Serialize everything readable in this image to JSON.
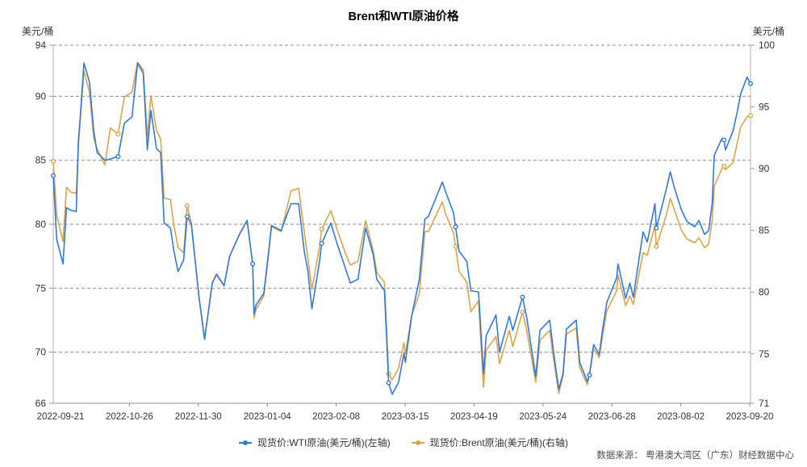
{
  "title": "Brent和WTI原油价格",
  "source": "数据来源： 粤港澳大湾区（广东）财经数据中心",
  "legend": [
    {
      "label": "现货价:WTI原油(美元/桶)(左轴)",
      "color": "#3379d6"
    },
    {
      "label": "现货价:Brent原油(美元/桶)(右轴)",
      "color": "#d9a44c"
    }
  ],
  "chart_data": {
    "type": "line",
    "title": "Brent和WTI原油价格",
    "grid": "horizontal dashed, aligned to left axis ticks",
    "legend_position": "bottom-center",
    "y_left": {
      "label": "美元/桶",
      "min": 66,
      "max": 94,
      "ticks": [
        94,
        90,
        85,
        80,
        75,
        70,
        66
      ]
    },
    "y_right": {
      "label": "美元/桶",
      "min": 71,
      "max": 100,
      "ticks": [
        100,
        95,
        90,
        85,
        80,
        75,
        71
      ]
    },
    "x_tick_labels": [
      "2022-09-21",
      "2022-10-26",
      "2022-11-30",
      "2023-01-04",
      "2023-02-08",
      "2023-03-15",
      "2023-04-19",
      "2023-05-24",
      "2023-06-28",
      "2023-08-02",
      "2023-09-20"
    ],
    "x_range": [
      "2022-09-21",
      "2023-09-20"
    ],
    "series": [
      {
        "name": "现货价:WTI原油(美元/桶)(左轴)",
        "axis": "left",
        "color": "#3379d6",
        "points": [
          [
            0.0,
            83.8,
            1
          ],
          [
            0.005,
            78.8
          ],
          [
            0.014,
            76.9
          ],
          [
            0.019,
            81.3
          ],
          [
            0.025,
            81.1
          ],
          [
            0.033,
            81.0
          ],
          [
            0.036,
            86.5
          ],
          [
            0.038,
            87.8
          ],
          [
            0.044,
            92.6
          ],
          [
            0.052,
            91.1
          ],
          [
            0.058,
            87.3
          ],
          [
            0.063,
            85.6
          ],
          [
            0.074,
            85.0
          ],
          [
            0.082,
            85.1
          ],
          [
            0.093,
            85.3,
            1
          ],
          [
            0.102,
            87.9
          ],
          [
            0.113,
            88.4
          ],
          [
            0.121,
            92.6
          ],
          [
            0.129,
            91.8
          ],
          [
            0.135,
            85.8
          ],
          [
            0.14,
            88.9
          ],
          [
            0.148,
            85.9
          ],
          [
            0.154,
            85.6
          ],
          [
            0.159,
            80.1
          ],
          [
            0.168,
            79.7
          ],
          [
            0.173,
            77.9
          ],
          [
            0.179,
            76.3
          ],
          [
            0.187,
            77.2
          ],
          [
            0.192,
            80.6,
            1
          ],
          [
            0.198,
            80.0
          ],
          [
            0.209,
            74.3
          ],
          [
            0.217,
            71.0
          ],
          [
            0.228,
            75.4
          ],
          [
            0.234,
            76.1
          ],
          [
            0.245,
            75.2
          ],
          [
            0.253,
            77.5
          ],
          [
            0.267,
            79.2
          ],
          [
            0.278,
            80.3
          ],
          [
            0.286,
            76.9,
            1
          ],
          [
            0.288,
            73.0
          ],
          [
            0.291,
            73.7
          ],
          [
            0.302,
            74.6
          ],
          [
            0.308,
            77.4
          ],
          [
            0.313,
            79.9
          ],
          [
            0.327,
            79.5
          ],
          [
            0.341,
            81.6
          ],
          [
            0.352,
            81.6
          ],
          [
            0.36,
            77.9
          ],
          [
            0.365,
            76.4
          ],
          [
            0.371,
            73.4
          ],
          [
            0.382,
            77.1
          ],
          [
            0.385,
            78.5,
            1
          ],
          [
            0.398,
            80.1
          ],
          [
            0.407,
            78.5
          ],
          [
            0.42,
            76.4
          ],
          [
            0.426,
            75.4
          ],
          [
            0.437,
            75.7
          ],
          [
            0.448,
            79.7
          ],
          [
            0.459,
            77.6
          ],
          [
            0.464,
            75.7
          ],
          [
            0.475,
            74.8
          ],
          [
            0.481,
            67.6,
            1
          ],
          [
            0.486,
            66.7
          ],
          [
            0.495,
            67.6
          ],
          [
            0.503,
            69.9
          ],
          [
            0.505,
            69.2
          ],
          [
            0.514,
            72.8
          ],
          [
            0.525,
            75.7
          ],
          [
            0.533,
            80.4
          ],
          [
            0.538,
            80.6
          ],
          [
            0.558,
            83.3
          ],
          [
            0.563,
            82.5
          ],
          [
            0.574,
            80.9
          ],
          [
            0.577,
            79.8,
            1
          ],
          [
            0.582,
            77.9
          ],
          [
            0.593,
            77.1
          ],
          [
            0.599,
            74.8
          ],
          [
            0.61,
            74.7
          ],
          [
            0.617,
            68.3
          ],
          [
            0.621,
            71.3
          ],
          [
            0.635,
            72.9
          ],
          [
            0.64,
            70.0
          ],
          [
            0.654,
            72.8
          ],
          [
            0.659,
            71.7
          ],
          [
            0.673,
            74.3,
            1
          ],
          [
            0.679,
            72.7
          ],
          [
            0.692,
            68.1
          ],
          [
            0.698,
            71.7
          ],
          [
            0.712,
            72.5
          ],
          [
            0.717,
            70.2
          ],
          [
            0.725,
            67.1
          ],
          [
            0.731,
            68.3
          ],
          [
            0.736,
            71.8
          ],
          [
            0.75,
            72.5
          ],
          [
            0.755,
            69.2
          ],
          [
            0.766,
            67.7
          ],
          [
            0.769,
            68.2,
            1
          ],
          [
            0.775,
            70.6
          ],
          [
            0.783,
            69.8
          ],
          [
            0.788,
            71.8
          ],
          [
            0.794,
            73.9
          ],
          [
            0.808,
            75.8
          ],
          [
            0.81,
            76.9
          ],
          [
            0.821,
            74.2
          ],
          [
            0.827,
            75.4
          ],
          [
            0.832,
            74.3
          ],
          [
            0.846,
            79.4
          ],
          [
            0.852,
            78.6
          ],
          [
            0.863,
            81.6
          ],
          [
            0.865,
            79.7,
            1
          ],
          [
            0.879,
            82.7
          ],
          [
            0.885,
            84.1
          ],
          [
            0.89,
            83.0
          ],
          [
            0.901,
            81.1
          ],
          [
            0.909,
            80.2
          ],
          [
            0.92,
            79.8
          ],
          [
            0.926,
            80.3
          ],
          [
            0.934,
            79.2
          ],
          [
            0.94,
            79.5
          ],
          [
            0.945,
            81.6
          ],
          [
            0.948,
            85.4
          ],
          [
            0.959,
            86.7
          ],
          [
            0.962,
            86.6,
            1
          ],
          [
            0.964,
            85.8
          ],
          [
            0.975,
            87.3
          ],
          [
            0.981,
            88.8
          ],
          [
            0.986,
            90.2
          ],
          [
            0.995,
            91.5
          ],
          [
            1.0,
            91.0,
            1
          ]
        ]
      },
      {
        "name": "现货价:Brent原油(美元/桶)(右轴)",
        "axis": "right",
        "color": "#d9a44c",
        "points": [
          [
            0.0,
            90.6,
            1
          ],
          [
            0.005,
            86.2
          ],
          [
            0.014,
            84.1
          ],
          [
            0.019,
            88.5
          ],
          [
            0.025,
            88.1
          ],
          [
            0.033,
            88.0
          ],
          [
            0.036,
            91.8
          ],
          [
            0.038,
            93.4
          ],
          [
            0.044,
            97.9
          ],
          [
            0.052,
            96.2
          ],
          [
            0.058,
            92.5
          ],
          [
            0.063,
            91.6
          ],
          [
            0.074,
            90.3
          ],
          [
            0.082,
            93.3
          ],
          [
            0.093,
            92.8,
            1
          ],
          [
            0.102,
            95.8
          ],
          [
            0.113,
            96.2
          ],
          [
            0.121,
            98.6
          ],
          [
            0.129,
            98.0
          ],
          [
            0.135,
            92.6
          ],
          [
            0.14,
            95.9
          ],
          [
            0.148,
            93.1
          ],
          [
            0.154,
            92.4
          ],
          [
            0.159,
            87.6
          ],
          [
            0.168,
            87.5
          ],
          [
            0.173,
            85.4
          ],
          [
            0.179,
            83.6
          ],
          [
            0.187,
            83.2
          ],
          [
            0.192,
            87.0,
            1
          ],
          [
            0.198,
            85.6
          ],
          [
            0.209,
            79.6
          ],
          [
            0.217,
            76.2
          ],
          [
            0.228,
            80.7
          ],
          [
            0.234,
            81.4
          ],
          [
            0.245,
            80.5
          ],
          [
            0.253,
            82.9
          ],
          [
            0.267,
            84.7
          ],
          [
            0.278,
            85.8
          ],
          [
            0.286,
            82.3,
            1
          ],
          [
            0.288,
            77.9
          ],
          [
            0.291,
            78.6
          ],
          [
            0.302,
            79.7
          ],
          [
            0.308,
            82.6
          ],
          [
            0.313,
            85.3
          ],
          [
            0.327,
            84.9
          ],
          [
            0.341,
            88.2
          ],
          [
            0.352,
            88.4
          ],
          [
            0.36,
            84.9
          ],
          [
            0.365,
            82.8
          ],
          [
            0.371,
            80.2
          ],
          [
            0.382,
            83.7
          ],
          [
            0.385,
            85.1,
            1
          ],
          [
            0.398,
            86.6
          ],
          [
            0.407,
            85.1
          ],
          [
            0.42,
            83.0
          ],
          [
            0.426,
            82.2
          ],
          [
            0.437,
            82.5
          ],
          [
            0.448,
            85.8
          ],
          [
            0.459,
            83.3
          ],
          [
            0.464,
            81.6
          ],
          [
            0.475,
            80.8
          ],
          [
            0.481,
            73.4,
            1
          ],
          [
            0.486,
            72.9
          ],
          [
            0.495,
            73.8
          ],
          [
            0.503,
            75.9
          ],
          [
            0.505,
            75.0
          ],
          [
            0.514,
            78.1
          ],
          [
            0.525,
            79.9
          ],
          [
            0.533,
            84.9
          ],
          [
            0.538,
            84.9
          ],
          [
            0.558,
            87.3
          ],
          [
            0.563,
            86.3
          ],
          [
            0.574,
            84.8
          ],
          [
            0.577,
            83.7,
            1
          ],
          [
            0.582,
            81.7
          ],
          [
            0.593,
            80.8
          ],
          [
            0.599,
            78.4
          ],
          [
            0.61,
            79.3
          ],
          [
            0.617,
            72.3
          ],
          [
            0.621,
            75.3
          ],
          [
            0.635,
            76.4
          ],
          [
            0.64,
            74.2
          ],
          [
            0.654,
            76.9
          ],
          [
            0.659,
            75.6
          ],
          [
            0.673,
            78.4,
            1
          ],
          [
            0.679,
            76.9
          ],
          [
            0.692,
            72.7
          ],
          [
            0.698,
            76.1
          ],
          [
            0.712,
            76.9
          ],
          [
            0.717,
            74.8
          ],
          [
            0.725,
            71.8
          ],
          [
            0.731,
            73.2
          ],
          [
            0.736,
            76.6
          ],
          [
            0.75,
            77.1
          ],
          [
            0.755,
            73.9
          ],
          [
            0.766,
            72.5
          ],
          [
            0.769,
            73.3,
            1
          ],
          [
            0.775,
            75.4
          ],
          [
            0.783,
            74.7
          ],
          [
            0.788,
            76.5
          ],
          [
            0.794,
            78.5
          ],
          [
            0.808,
            80.1
          ],
          [
            0.81,
            81.4
          ],
          [
            0.821,
            78.9
          ],
          [
            0.827,
            79.7
          ],
          [
            0.832,
            79.0
          ],
          [
            0.846,
            83.2
          ],
          [
            0.852,
            83.0
          ],
          [
            0.863,
            85.4
          ],
          [
            0.865,
            83.7,
            1
          ],
          [
            0.879,
            86.2
          ],
          [
            0.885,
            87.6
          ],
          [
            0.89,
            86.8
          ],
          [
            0.901,
            85.0
          ],
          [
            0.909,
            84.3
          ],
          [
            0.92,
            84.0
          ],
          [
            0.926,
            84.4
          ],
          [
            0.934,
            83.6
          ],
          [
            0.94,
            83.9
          ],
          [
            0.945,
            85.8
          ],
          [
            0.948,
            88.6
          ],
          [
            0.959,
            90.0
          ],
          [
            0.962,
            90.2,
            1
          ],
          [
            0.964,
            89.9
          ],
          [
            0.975,
            90.5
          ],
          [
            0.981,
            92.1
          ],
          [
            0.986,
            93.4
          ],
          [
            0.995,
            94.2
          ],
          [
            1.0,
            94.3,
            1
          ]
        ]
      }
    ]
  }
}
